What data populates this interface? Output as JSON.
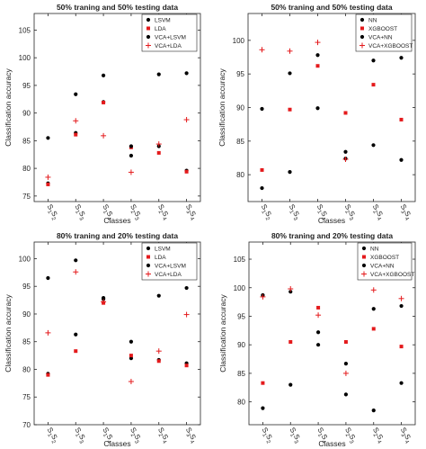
{
  "chart_data": [
    {
      "type": "scatter",
      "title": "50% traning and 50% testing data",
      "xlabel": "Classes",
      "ylabel": "Classification accuracy",
      "ylim": [
        74,
        108
      ],
      "yticks": [
        "75",
        "80",
        "85",
        "90",
        "95",
        "100",
        "105"
      ],
      "categories": [
        {
          "main": "S",
          "sub1": "1",
          "mid": "S",
          "sub2": "2"
        },
        {
          "main": "S",
          "sub1": "1",
          "mid": "S",
          "sub2": "3"
        },
        {
          "main": "S",
          "sub1": "1",
          "mid": "S",
          "sub2": "4"
        },
        {
          "main": "S",
          "sub1": "2",
          "mid": "S",
          "sub2": "3"
        },
        {
          "main": "S",
          "sub1": "2",
          "mid": "S",
          "sub2": "4"
        },
        {
          "main": "S",
          "sub1": "3",
          "mid": "S",
          "sub2": "4"
        }
      ],
      "legend_position": "top-right",
      "series": [
        {
          "name": "LSVM",
          "marker": "dot",
          "color": "#000000",
          "values": [
            77.3,
            86.4,
            92.0,
            82.3,
            84.0,
            79.6
          ]
        },
        {
          "name": "LDA",
          "marker": "square",
          "color": "#e41a1c",
          "values": [
            77.1,
            86.1,
            91.9,
            83.8,
            82.8,
            79.4
          ]
        },
        {
          "name": "VCA+LSVM",
          "marker": "dot",
          "color": "#000000",
          "values": [
            85.5,
            93.4,
            96.8,
            84.0,
            97.0,
            97.2
          ]
        },
        {
          "name": "VCA+LDA",
          "marker": "plus",
          "color": "#e41a1c",
          "values": [
            78.4,
            88.6,
            85.9,
            79.3,
            84.4,
            88.8
          ]
        }
      ]
    },
    {
      "type": "scatter",
      "title": "50% traning and 50% testing data",
      "xlabel": "Classes",
      "ylabel": "Classification accuracy",
      "ylim": [
        76,
        104
      ],
      "yticks": [
        "80",
        "85",
        "90",
        "95",
        "100"
      ],
      "categories": [
        {
          "main": "S",
          "sub1": "1",
          "mid": "S",
          "sub2": "2"
        },
        {
          "main": "S",
          "sub1": "1",
          "mid": "S",
          "sub2": "3"
        },
        {
          "main": "S",
          "sub1": "1",
          "mid": "S",
          "sub2": "4"
        },
        {
          "main": "S",
          "sub1": "2",
          "mid": "S",
          "sub2": "3"
        },
        {
          "main": "S",
          "sub1": "2",
          "mid": "S",
          "sub2": "4"
        },
        {
          "main": "S",
          "sub1": "3",
          "mid": "S",
          "sub2": "4"
        }
      ],
      "legend_position": "top-right",
      "series": [
        {
          "name": "NN",
          "marker": "dot",
          "color": "#000000",
          "values": [
            78.0,
            80.4,
            89.9,
            83.4,
            84.4,
            82.2
          ]
        },
        {
          "name": "XGBOOST",
          "marker": "square",
          "color": "#e41a1c",
          "values": [
            80.7,
            89.7,
            96.2,
            89.2,
            93.4,
            88.2
          ]
        },
        {
          "name": "VCA+NN",
          "marker": "dot",
          "color": "#000000",
          "values": [
            89.8,
            95.1,
            97.8,
            82.4,
            97.0,
            97.4
          ]
        },
        {
          "name": "VCA+XGBOOST",
          "marker": "plus",
          "color": "#e41a1c",
          "values": [
            98.6,
            98.4,
            99.7,
            82.3,
            99.9,
            98.8
          ]
        }
      ]
    },
    {
      "type": "scatter",
      "title": "80% traning and 20% testing data",
      "xlabel": "Classes",
      "ylabel": "Classification accuracy",
      "ylim": [
        70,
        103
      ],
      "yticks": [
        "70",
        "75",
        "80",
        "85",
        "90",
        "95",
        "100"
      ],
      "categories": [
        {
          "main": "S",
          "sub1": "1",
          "mid": "S",
          "sub2": "2"
        },
        {
          "main": "S",
          "sub1": "1",
          "mid": "S",
          "sub2": "3"
        },
        {
          "main": "S",
          "sub1": "1",
          "mid": "S",
          "sub2": "4"
        },
        {
          "main": "S",
          "sub1": "2",
          "mid": "S",
          "sub2": "3"
        },
        {
          "main": "S",
          "sub1": "2",
          "mid": "S",
          "sub2": "4"
        },
        {
          "main": "S",
          "sub1": "3",
          "mid": "S",
          "sub2": "4"
        }
      ],
      "legend_position": "top-right",
      "series": [
        {
          "name": "LSVM",
          "marker": "dot",
          "color": "#000000",
          "values": [
            79.2,
            86.3,
            92.7,
            82.0,
            81.7,
            81.1
          ]
        },
        {
          "name": "LDA",
          "marker": "square",
          "color": "#e41a1c",
          "values": [
            79.0,
            83.3,
            92.0,
            82.5,
            81.5,
            80.7
          ]
        },
        {
          "name": "VCA+LSVM",
          "marker": "dot",
          "color": "#000000",
          "values": [
            96.5,
            99.7,
            92.9,
            85.0,
            93.3,
            94.7
          ]
        },
        {
          "name": "VCA+LDA",
          "marker": "plus",
          "color": "#e41a1c",
          "values": [
            86.6,
            97.6,
            92.2,
            77.8,
            83.3,
            89.9
          ]
        }
      ]
    },
    {
      "type": "scatter",
      "title": "80% traning and 20% testing data",
      "xlabel": "Classes",
      "ylabel": "Classification accuracy",
      "ylim": [
        76,
        108
      ],
      "yticks": [
        "80",
        "85",
        "90",
        "95",
        "100",
        "105"
      ],
      "categories": [
        {
          "main": "S",
          "sub1": "1",
          "mid": "S",
          "sub2": "2"
        },
        {
          "main": "S",
          "sub1": "1",
          "mid": "S",
          "sub2": "3"
        },
        {
          "main": "S",
          "sub1": "1",
          "mid": "S",
          "sub2": "4"
        },
        {
          "main": "S",
          "sub1": "2",
          "mid": "S",
          "sub2": "3"
        },
        {
          "main": "S",
          "sub1": "2",
          "mid": "S",
          "sub2": "4"
        },
        {
          "main": "S",
          "sub1": "3",
          "mid": "S",
          "sub2": "4"
        }
      ],
      "legend_position": "top-right",
      "series": [
        {
          "name": "NN",
          "marker": "dot",
          "color": "#000000",
          "values": [
            78.9,
            83.0,
            92.2,
            81.3,
            78.5,
            83.3
          ]
        },
        {
          "name": "XGBOOST",
          "marker": "square",
          "color": "#e41a1c",
          "values": [
            83.3,
            90.5,
            96.5,
            90.5,
            92.8,
            89.7
          ]
        },
        {
          "name": "VCA+NN",
          "marker": "dot",
          "color": "#000000",
          "values": [
            98.7,
            99.3,
            90.0,
            86.7,
            96.3,
            96.8
          ]
        },
        {
          "name": "VCA+XGBOOST",
          "marker": "plus",
          "color": "#e41a1c",
          "values": [
            98.4,
            99.8,
            95.2,
            85.0,
            99.6,
            98.1
          ]
        }
      ]
    }
  ]
}
